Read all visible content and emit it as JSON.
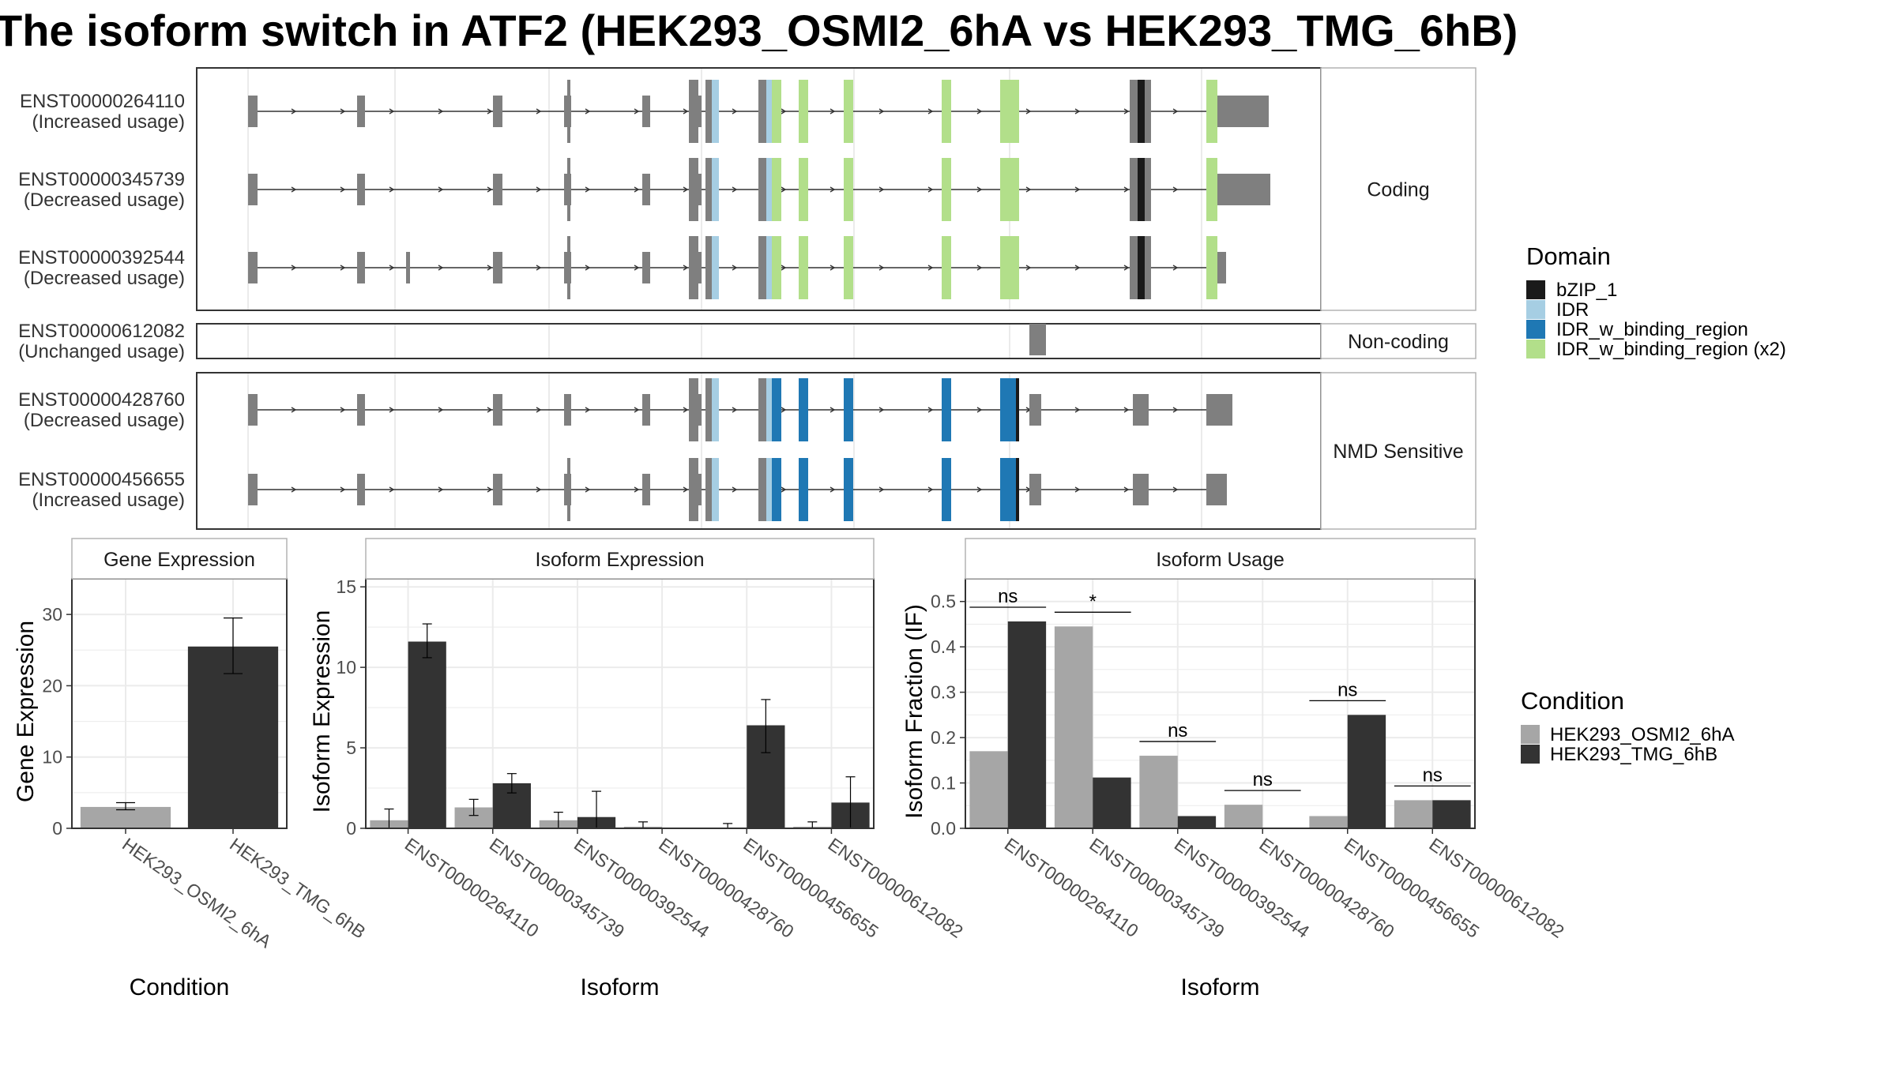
{
  "title": "The isoform switch in ATF2 (HEK293_OSMI2_6hA vs HEK293_TMG_6hB)",
  "colors": {
    "exon": "#7f7f7f",
    "bzip": "#1a1a1a",
    "idr": "#a6cee3",
    "idr_bind": "#1f78b4",
    "idr_bind2": "#b2df8a",
    "cond_a": "#a6a6a6",
    "cond_b": "#333333",
    "grid": "#ebebeb",
    "panel_border": "#333333",
    "strip_border": "#b3b3b3",
    "line": "#333333"
  },
  "structure": {
    "groups": [
      {
        "label": "Coding",
        "transcripts": [
          {
            "id": "ENST00000264110",
            "status": "(Increased usage)",
            "type": "coding"
          },
          {
            "id": "ENST00000345739",
            "status": "(Decreased usage)",
            "type": "coding"
          },
          {
            "id": "ENST00000392544",
            "status": "(Decreased usage)",
            "type": "coding"
          }
        ]
      },
      {
        "label": "Non-coding",
        "transcripts": [
          {
            "id": "ENST00000612082",
            "status": "(Unchanged usage)",
            "type": "noncoding"
          }
        ]
      },
      {
        "label": "NMD Sensitive",
        "transcripts": [
          {
            "id": "ENST00000428760",
            "status": "(Decreased usage)",
            "type": "nmd"
          },
          {
            "id": "ENST00000456655",
            "status": "(Increased usage)",
            "type": "nmd"
          }
        ]
      }
    ]
  },
  "legend_domain": {
    "title": "Domain",
    "items": [
      {
        "label": "bZIP_1",
        "color": "#1a1a1a"
      },
      {
        "label": "IDR",
        "color": "#a6cee3"
      },
      {
        "label": "IDR_w_binding_region",
        "color": "#1f78b4"
      },
      {
        "label": "IDR_w_binding_region (x2)",
        "color": "#b2df8a"
      }
    ]
  },
  "legend_condition": {
    "title": "Condition",
    "items": [
      {
        "label": "HEK293_OSMI2_6hA",
        "color": "#a6a6a6"
      },
      {
        "label": "HEK293_TMG_6hB",
        "color": "#333333"
      }
    ]
  },
  "chart_data": [
    {
      "type": "bar",
      "title": "Gene Expression",
      "xlabel": "Condition",
      "ylabel": "Gene Expression",
      "categories": [
        "HEK293_OSMI2_6hA",
        "HEK293_TMG_6hB"
      ],
      "values": [
        3.0,
        25.5
      ],
      "error_low": [
        2.6,
        21.7
      ],
      "error_high": [
        3.6,
        29.5
      ],
      "ylim": [
        0,
        35
      ],
      "yticks": [
        0,
        10,
        20,
        30
      ]
    },
    {
      "type": "bar",
      "title": "Isoform Expression",
      "xlabel": "Isoform",
      "ylabel": "Isoform Expression",
      "categories": [
        "ENST00000264110",
        "ENST00000345739",
        "ENST00000392544",
        "ENST00000428760",
        "ENST00000456655",
        "ENST00000612082"
      ],
      "series": [
        {
          "name": "HEK293_OSMI2_6hA",
          "values": [
            0.5,
            1.3,
            0.5,
            0.1,
            0.05,
            0.1
          ],
          "error_low": [
            0.0,
            0.8,
            0.0,
            0.0,
            0.0,
            0.0
          ],
          "error_high": [
            1.2,
            1.8,
            1.0,
            0.4,
            0.3,
            0.4
          ]
        },
        {
          "name": "HEK293_TMG_6hB",
          "values": [
            11.6,
            2.8,
            0.7,
            0.0,
            6.4,
            1.6
          ],
          "error_low": [
            10.6,
            2.2,
            0.0,
            0.0,
            4.7,
            0.0
          ],
          "error_high": [
            12.7,
            3.4,
            2.3,
            0.0,
            8.0,
            3.2
          ]
        }
      ],
      "ylim": [
        0,
        15.5
      ],
      "yticks": [
        0,
        5,
        10,
        15
      ]
    },
    {
      "type": "bar",
      "title": "Isoform Usage",
      "xlabel": "Isoform",
      "ylabel": "Isoform Fraction (IF)",
      "categories": [
        "ENST00000264110",
        "ENST00000345739",
        "ENST00000392544",
        "ENST00000428760",
        "ENST00000456655",
        "ENST00000612082"
      ],
      "series": [
        {
          "name": "HEK293_OSMI2_6hA",
          "values": [
            0.17,
            0.445,
            0.16,
            0.052,
            0.027,
            0.062
          ]
        },
        {
          "name": "HEK293_TMG_6hB",
          "values": [
            0.456,
            0.112,
            0.027,
            0.0,
            0.25,
            0.062
          ]
        }
      ],
      "significance": [
        "ns",
        "*",
        "ns",
        "ns",
        "ns",
        "ns"
      ],
      "ylim": [
        0,
        0.55
      ],
      "yticks": [
        0.0,
        0.1,
        0.2,
        0.3,
        0.4,
        0.5
      ],
      "ytick_labels": [
        "0.0",
        "0.1",
        "0.2",
        "0.3",
        "0.4",
        "0.5"
      ]
    }
  ]
}
